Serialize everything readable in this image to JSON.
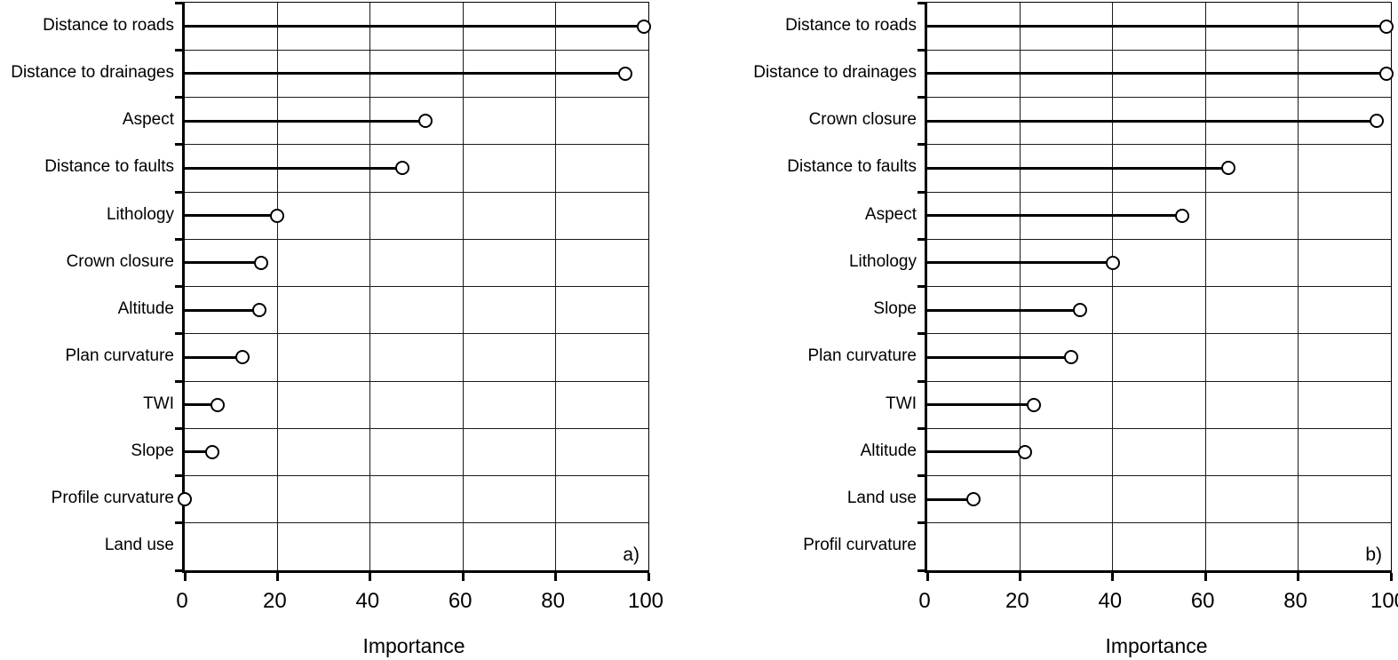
{
  "figure": {
    "description": "Two side-by-side lollipop charts of variable importance",
    "background_color": "#ffffff",
    "line_color": "#000000",
    "marker_style": "open-circle"
  },
  "chart_data": [
    {
      "type": "lollipop",
      "panel_label": "a)",
      "xlabel": "Importance",
      "x_ticks": [
        0,
        20,
        40,
        60,
        80,
        100
      ],
      "xlim": [
        0,
        100
      ],
      "grid": true,
      "categories": [
        "Distance to roads",
        "Distance to drainages",
        "Aspect",
        "Distance to faults",
        "Lithology",
        "Crown closure",
        "Altitude",
        "Plan curvature",
        "TWI",
        "Slope",
        "Profile curvature",
        "Land use"
      ],
      "values": [
        99,
        95,
        52,
        47,
        20,
        16.5,
        16,
        12.5,
        7,
        6,
        0,
        null
      ]
    },
    {
      "type": "lollipop",
      "panel_label": "b)",
      "xlabel": "Importance",
      "x_ticks": [
        0,
        20,
        40,
        60,
        80,
        100
      ],
      "xlim": [
        0,
        100
      ],
      "grid": true,
      "categories": [
        "Distance to roads",
        "Distance to drainages",
        "Crown closure",
        "Distance to faults",
        "Aspect",
        "Lithology",
        "Slope",
        "Plan curvature",
        "TWI",
        "Altitude",
        "Land use",
        "Profil curvature"
      ],
      "values": [
        99,
        99,
        97,
        65,
        55,
        40,
        33,
        31,
        23,
        21,
        10,
        null
      ]
    }
  ]
}
